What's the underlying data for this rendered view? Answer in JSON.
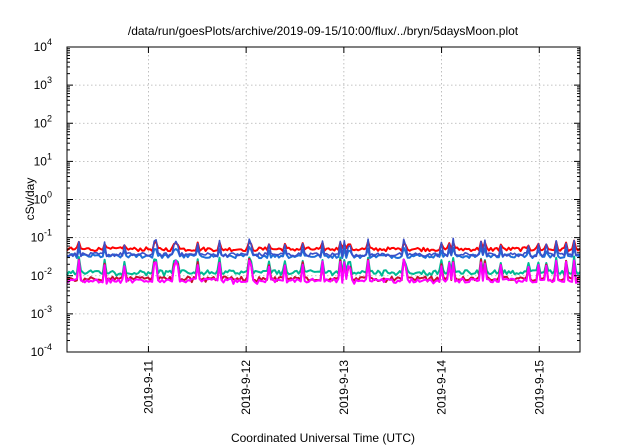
{
  "chart_data": {
    "type": "line",
    "title": "/data/run/goesPlots/archive/2019-09-15/10:00/flux/../bryn/5daysMoon.plot",
    "xlabel": "Coordinated Universal Time (UTC)",
    "ylabel": "cSv/day",
    "yscale": "log",
    "ylim": [
      0.0001,
      10000
    ],
    "xlim": [
      "2019-09-10T04:00",
      "2019-09-15T10:00"
    ],
    "grid": true,
    "legend": "none",
    "y_ticks": [
      {
        "base": "10",
        "exp": "-4",
        "value": 0.0001
      },
      {
        "base": "10",
        "exp": "-3",
        "value": 0.001
      },
      {
        "base": "10",
        "exp": "-2",
        "value": 0.01
      },
      {
        "base": "10",
        "exp": "-1",
        "value": 0.1
      },
      {
        "base": "10",
        "exp": "0",
        "value": 1
      },
      {
        "base": "10",
        "exp": "1",
        "value": 10
      },
      {
        "base": "10",
        "exp": "2",
        "value": 100
      },
      {
        "base": "10",
        "exp": "3",
        "value": 1000
      },
      {
        "base": "10",
        "exp": "4",
        "value": 10000
      }
    ],
    "x_ticks": [
      {
        "label": "2019-9-11",
        "value": "2019-09-11T00:00"
      },
      {
        "label": "2019-9-12",
        "value": "2019-09-12T00:00"
      },
      {
        "label": "2019-9-13",
        "value": "2019-09-13T00:00"
      },
      {
        "label": "2019-9-14",
        "value": "2019-09-14T00:00"
      },
      {
        "label": "2019-9-15",
        "value": "2019-09-15T00:00"
      }
    ],
    "series": [
      {
        "color": "#ff0000",
        "base": 0.05,
        "spike": 0.085
      },
      {
        "color": "#1e6fd9",
        "base": 0.033,
        "spike": 0.06
      },
      {
        "color": "#3a4fc8",
        "base": 0.036,
        "spike": 0.1
      },
      {
        "color": "#00b894",
        "base": 0.0125,
        "spike": 0.035
      },
      {
        "color": "#c8102e",
        "base": 0.0085,
        "spike": 0.03
      },
      {
        "color": "#ff00ff",
        "base": 0.0075,
        "spike": 0.03
      }
    ]
  }
}
